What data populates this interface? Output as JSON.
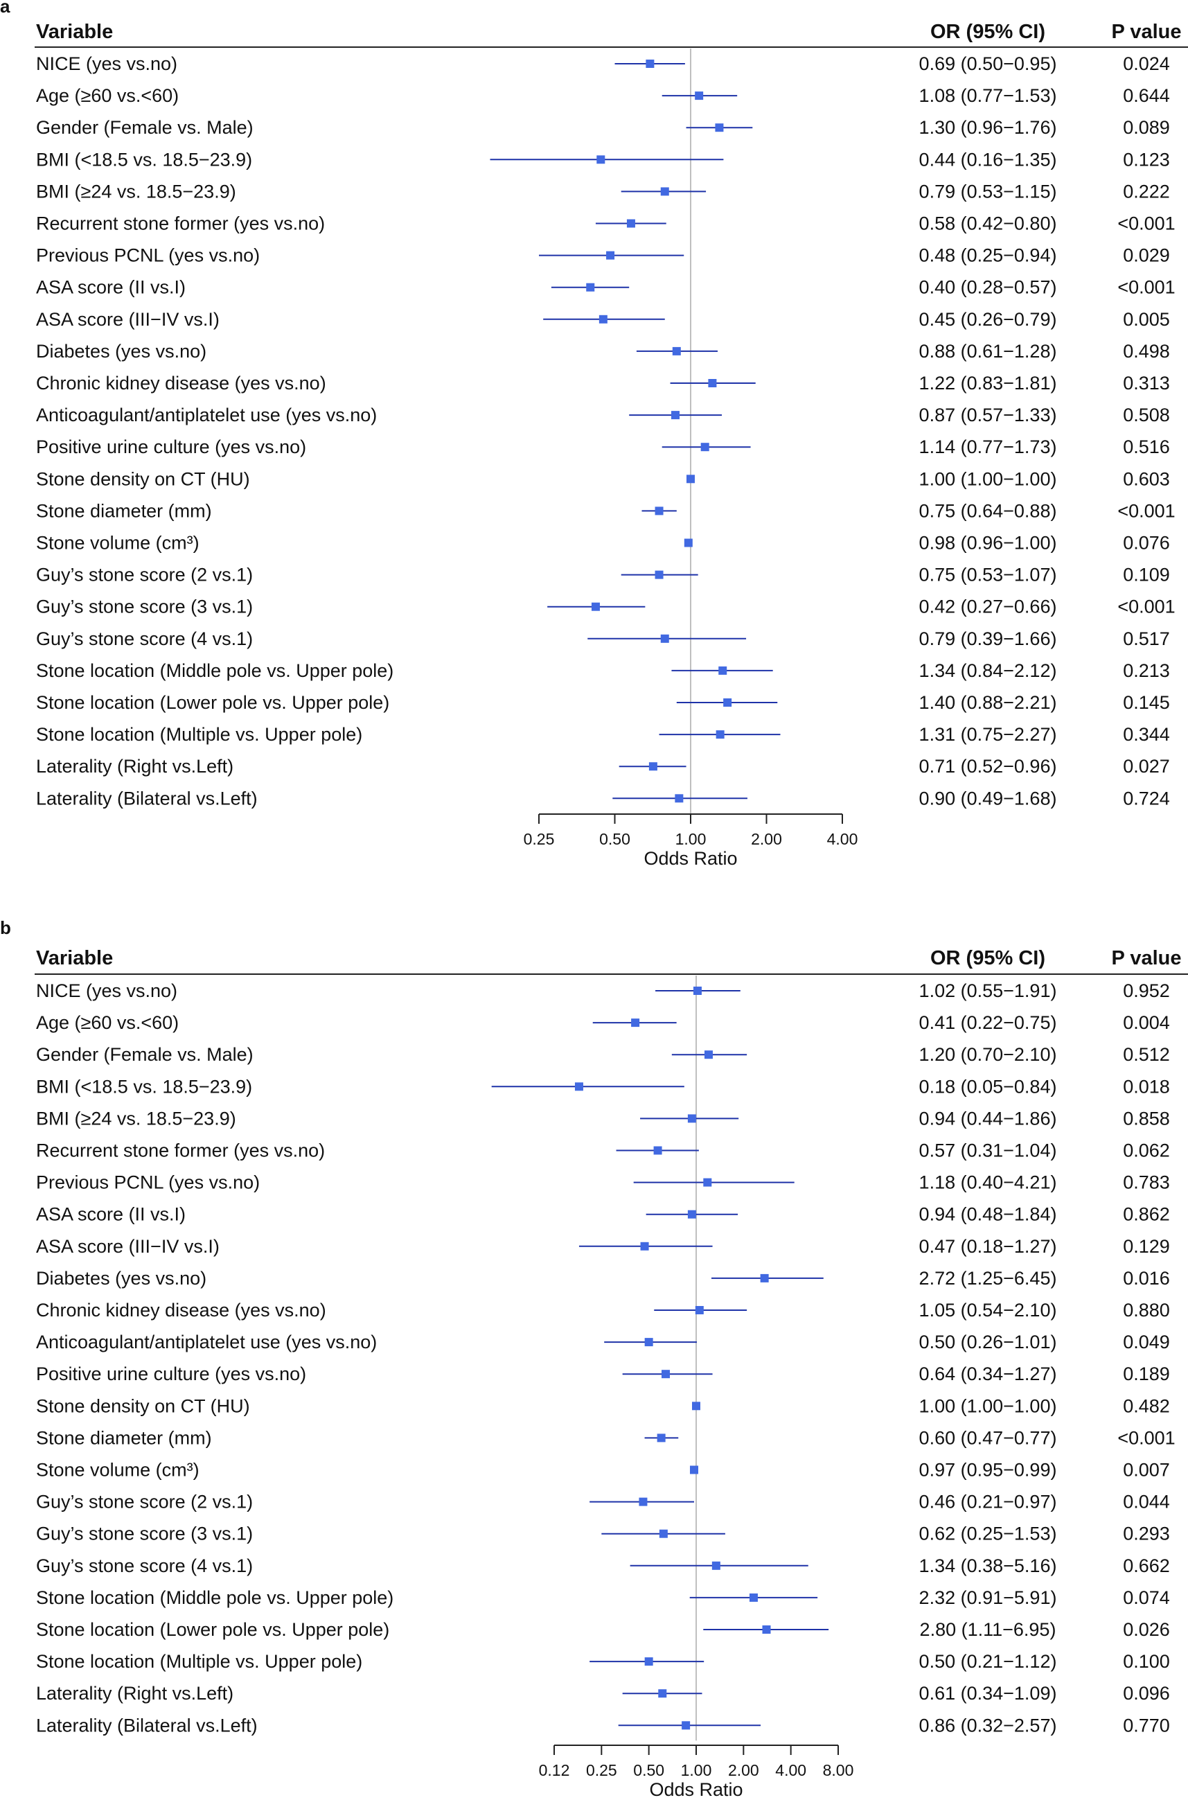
{
  "panels": [
    {
      "letter": "a",
      "headers": {
        "variable": "Variable",
        "or": "OR (95% CI)",
        "p": "P value"
      },
      "xlabel": "Odds Ratio",
      "ticks": [
        0.25,
        0.5,
        1.0,
        2.0,
        4.0
      ],
      "tick_labels": [
        "0.25",
        "0.50",
        "1.00",
        "2.00",
        "4.00"
      ]
    },
    {
      "letter": "b",
      "headers": {
        "variable": "Variable",
        "or": "OR (95% CI)",
        "p": "P value"
      },
      "xlabel": "Odds Ratio",
      "ticks": [
        0.125,
        0.25,
        0.5,
        1.0,
        2.0,
        4.0,
        8.0
      ],
      "tick_labels": [
        "0.12",
        "0.25",
        "0.50",
        "1.00",
        "2.00",
        "4.00",
        "8.00"
      ]
    }
  ],
  "chart_data": [
    {
      "type": "forest",
      "xlabel": "Odds Ratio",
      "xscale": "log2",
      "xlim": [
        0.25,
        4.0
      ],
      "reference_line": 1.0,
      "rows": [
        {
          "label": "NICE (yes vs.no)",
          "or": 0.69,
          "lo": 0.5,
          "hi": 0.95,
          "ci_text": "0.69 (0.50−0.95)",
          "p": "0.024"
        },
        {
          "label": "Age (≥60 vs.<60)",
          "or": 1.08,
          "lo": 0.77,
          "hi": 1.53,
          "ci_text": "1.08 (0.77−1.53)",
          "p": "0.644"
        },
        {
          "label": "Gender (Female vs. Male)",
          "or": 1.3,
          "lo": 0.96,
          "hi": 1.76,
          "ci_text": "1.30 (0.96−1.76)",
          "p": "0.089"
        },
        {
          "label": "BMI (<18.5 vs. 18.5−23.9)",
          "or": 0.44,
          "lo": 0.16,
          "hi": 1.35,
          "ci_text": "0.44 (0.16−1.35)",
          "p": "0.123"
        },
        {
          "label": "BMI (≥24 vs. 18.5−23.9)",
          "or": 0.79,
          "lo": 0.53,
          "hi": 1.15,
          "ci_text": "0.79 (0.53−1.15)",
          "p": "0.222"
        },
        {
          "label": "Recurrent stone former (yes vs.no)",
          "or": 0.58,
          "lo": 0.42,
          "hi": 0.8,
          "ci_text": "0.58 (0.42−0.80)",
          "p": "<0.001"
        },
        {
          "label": "Previous PCNL (yes vs.no)",
          "or": 0.48,
          "lo": 0.25,
          "hi": 0.94,
          "ci_text": "0.48 (0.25−0.94)",
          "p": "0.029"
        },
        {
          "label": "ASA score (II vs.I)",
          "or": 0.4,
          "lo": 0.28,
          "hi": 0.57,
          "ci_text": "0.40 (0.28−0.57)",
          "p": "<0.001"
        },
        {
          "label": "ASA score (III−IV vs.I)",
          "or": 0.45,
          "lo": 0.26,
          "hi": 0.79,
          "ci_text": "0.45 (0.26−0.79)",
          "p": "0.005"
        },
        {
          "label": "Diabetes (yes vs.no)",
          "or": 0.88,
          "lo": 0.61,
          "hi": 1.28,
          "ci_text": "0.88 (0.61−1.28)",
          "p": "0.498"
        },
        {
          "label": "Chronic kidney disease (yes vs.no)",
          "or": 1.22,
          "lo": 0.83,
          "hi": 1.81,
          "ci_text": "1.22 (0.83−1.81)",
          "p": "0.313"
        },
        {
          "label": "Anticoagulant/antiplatelet use (yes vs.no)",
          "or": 0.87,
          "lo": 0.57,
          "hi": 1.33,
          "ci_text": "0.87 (0.57−1.33)",
          "p": "0.508"
        },
        {
          "label": "Positive urine culture (yes vs.no)",
          "or": 1.14,
          "lo": 0.77,
          "hi": 1.73,
          "ci_text": "1.14 (0.77−1.73)",
          "p": "0.516"
        },
        {
          "label": "Stone density on CT (HU)",
          "or": 1.0,
          "lo": 1.0,
          "hi": 1.0,
          "ci_text": "1.00 (1.00−1.00)",
          "p": "0.603"
        },
        {
          "label": "Stone diameter (mm)",
          "or": 0.75,
          "lo": 0.64,
          "hi": 0.88,
          "ci_text": "0.75 (0.64−0.88)",
          "p": "<0.001"
        },
        {
          "label": "Stone volume (cm³)",
          "or": 0.98,
          "lo": 0.96,
          "hi": 1.0,
          "ci_text": "0.98 (0.96−1.00)",
          "p": "0.076"
        },
        {
          "label": "Guy’s stone score (2 vs.1)",
          "or": 0.75,
          "lo": 0.53,
          "hi": 1.07,
          "ci_text": "0.75 (0.53−1.07)",
          "p": "0.109"
        },
        {
          "label": "Guy’s stone score (3 vs.1)",
          "or": 0.42,
          "lo": 0.27,
          "hi": 0.66,
          "ci_text": "0.42 (0.27−0.66)",
          "p": "<0.001"
        },
        {
          "label": "Guy’s stone score (4 vs.1)",
          "or": 0.79,
          "lo": 0.39,
          "hi": 1.66,
          "ci_text": "0.79 (0.39−1.66)",
          "p": "0.517"
        },
        {
          "label": "Stone location (Middle pole vs. Upper pole)",
          "or": 1.34,
          "lo": 0.84,
          "hi": 2.12,
          "ci_text": "1.34 (0.84−2.12)",
          "p": "0.213"
        },
        {
          "label": "Stone location (Lower pole vs. Upper pole)",
          "or": 1.4,
          "lo": 0.88,
          "hi": 2.21,
          "ci_text": "1.40 (0.88−2.21)",
          "p": "0.145"
        },
        {
          "label": "Stone location (Multiple vs. Upper pole)",
          "or": 1.31,
          "lo": 0.75,
          "hi": 2.27,
          "ci_text": "1.31 (0.75−2.27)",
          "p": "0.344"
        },
        {
          "label": "Laterality (Right vs.Left)",
          "or": 0.71,
          "lo": 0.52,
          "hi": 0.96,
          "ci_text": "0.71 (0.52−0.96)",
          "p": "0.027"
        },
        {
          "label": "Laterality (Bilateral vs.Left)",
          "or": 0.9,
          "lo": 0.49,
          "hi": 1.68,
          "ci_text": "0.90 (0.49−1.68)",
          "p": "0.724"
        }
      ]
    },
    {
      "type": "forest",
      "xlabel": "Odds Ratio",
      "xscale": "log2",
      "xlim": [
        0.125,
        8.0
      ],
      "reference_line": 1.0,
      "rows": [
        {
          "label": "NICE (yes vs.no)",
          "or": 1.02,
          "lo": 0.55,
          "hi": 1.91,
          "ci_text": "1.02 (0.55−1.91)",
          "p": "0.952"
        },
        {
          "label": "Age (≥60 vs.<60)",
          "or": 0.41,
          "lo": 0.22,
          "hi": 0.75,
          "ci_text": "0.41 (0.22−0.75)",
          "p": "0.004"
        },
        {
          "label": "Gender (Female vs. Male)",
          "or": 1.2,
          "lo": 0.7,
          "hi": 2.1,
          "ci_text": "1.20 (0.70−2.10)",
          "p": "0.512"
        },
        {
          "label": "BMI (<18.5 vs. 18.5−23.9)",
          "or": 0.18,
          "lo": 0.05,
          "hi": 0.84,
          "ci_text": "0.18 (0.05−0.84)",
          "p": "0.018"
        },
        {
          "label": "BMI (≥24 vs. 18.5−23.9)",
          "or": 0.94,
          "lo": 0.44,
          "hi": 1.86,
          "ci_text": "0.94 (0.44−1.86)",
          "p": "0.858"
        },
        {
          "label": "Recurrent stone former (yes vs.no)",
          "or": 0.57,
          "lo": 0.31,
          "hi": 1.04,
          "ci_text": "0.57 (0.31−1.04)",
          "p": "0.062"
        },
        {
          "label": "Previous PCNL (yes vs.no)",
          "or": 1.18,
          "lo": 0.4,
          "hi": 4.21,
          "ci_text": "1.18 (0.40−4.21)",
          "p": "0.783"
        },
        {
          "label": "ASA score (II vs.I)",
          "or": 0.94,
          "lo": 0.48,
          "hi": 1.84,
          "ci_text": "0.94 (0.48−1.84)",
          "p": "0.862"
        },
        {
          "label": "ASA score (III−IV vs.I)",
          "or": 0.47,
          "lo": 0.18,
          "hi": 1.27,
          "ci_text": "0.47 (0.18−1.27)",
          "p": "0.129"
        },
        {
          "label": "Diabetes (yes vs.no)",
          "or": 2.72,
          "lo": 1.25,
          "hi": 6.45,
          "ci_text": "2.72 (1.25−6.45)",
          "p": "0.016"
        },
        {
          "label": "Chronic kidney disease (yes vs.no)",
          "or": 1.05,
          "lo": 0.54,
          "hi": 2.1,
          "ci_text": "1.05 (0.54−2.10)",
          "p": "0.880"
        },
        {
          "label": "Anticoagulant/antiplatelet use (yes vs.no)",
          "or": 0.5,
          "lo": 0.26,
          "hi": 1.01,
          "ci_text": "0.50 (0.26−1.01)",
          "p": "0.049"
        },
        {
          "label": "Positive urine culture (yes vs.no)",
          "or": 0.64,
          "lo": 0.34,
          "hi": 1.27,
          "ci_text": "0.64 (0.34−1.27)",
          "p": "0.189"
        },
        {
          "label": "Stone density on CT (HU)",
          "or": 1.0,
          "lo": 1.0,
          "hi": 1.0,
          "ci_text": "1.00 (1.00−1.00)",
          "p": "0.482"
        },
        {
          "label": "Stone diameter (mm)",
          "or": 0.6,
          "lo": 0.47,
          "hi": 0.77,
          "ci_text": "0.60 (0.47−0.77)",
          "p": "<0.001"
        },
        {
          "label": "Stone volume (cm³)",
          "or": 0.97,
          "lo": 0.95,
          "hi": 0.99,
          "ci_text": "0.97 (0.95−0.99)",
          "p": "0.007"
        },
        {
          "label": "Guy’s stone score (2 vs.1)",
          "or": 0.46,
          "lo": 0.21,
          "hi": 0.97,
          "ci_text": "0.46 (0.21−0.97)",
          "p": "0.044"
        },
        {
          "label": "Guy’s stone score (3 vs.1)",
          "or": 0.62,
          "lo": 0.25,
          "hi": 1.53,
          "ci_text": "0.62 (0.25−1.53)",
          "p": "0.293"
        },
        {
          "label": "Guy’s stone score (4 vs.1)",
          "or": 1.34,
          "lo": 0.38,
          "hi": 5.16,
          "ci_text": "1.34 (0.38−5.16)",
          "p": "0.662"
        },
        {
          "label": "Stone location (Middle pole vs. Upper pole)",
          "or": 2.32,
          "lo": 0.91,
          "hi": 5.91,
          "ci_text": "2.32 (0.91−5.91)",
          "p": "0.074"
        },
        {
          "label": "Stone location (Lower pole vs. Upper pole)",
          "or": 2.8,
          "lo": 1.11,
          "hi": 6.95,
          "ci_text": "2.80 (1.11−6.95)",
          "p": "0.026"
        },
        {
          "label": "Stone location (Multiple vs. Upper pole)",
          "or": 0.5,
          "lo": 0.21,
          "hi": 1.12,
          "ci_text": "0.50 (0.21−1.12)",
          "p": "0.100"
        },
        {
          "label": "Laterality (Right vs.Left)",
          "or": 0.61,
          "lo": 0.34,
          "hi": 1.09,
          "ci_text": "0.61 (0.34−1.09)",
          "p": "0.096"
        },
        {
          "label": "Laterality (Bilateral vs.Left)",
          "or": 0.86,
          "lo": 0.32,
          "hi": 2.57,
          "ci_text": "0.86 (0.32−2.57)",
          "p": "0.770"
        }
      ]
    }
  ],
  "colors": {
    "point": "#4169e1",
    "ci_line": "#1e32a8",
    "ref_line": "#bfbfbf",
    "text": "#111111"
  }
}
